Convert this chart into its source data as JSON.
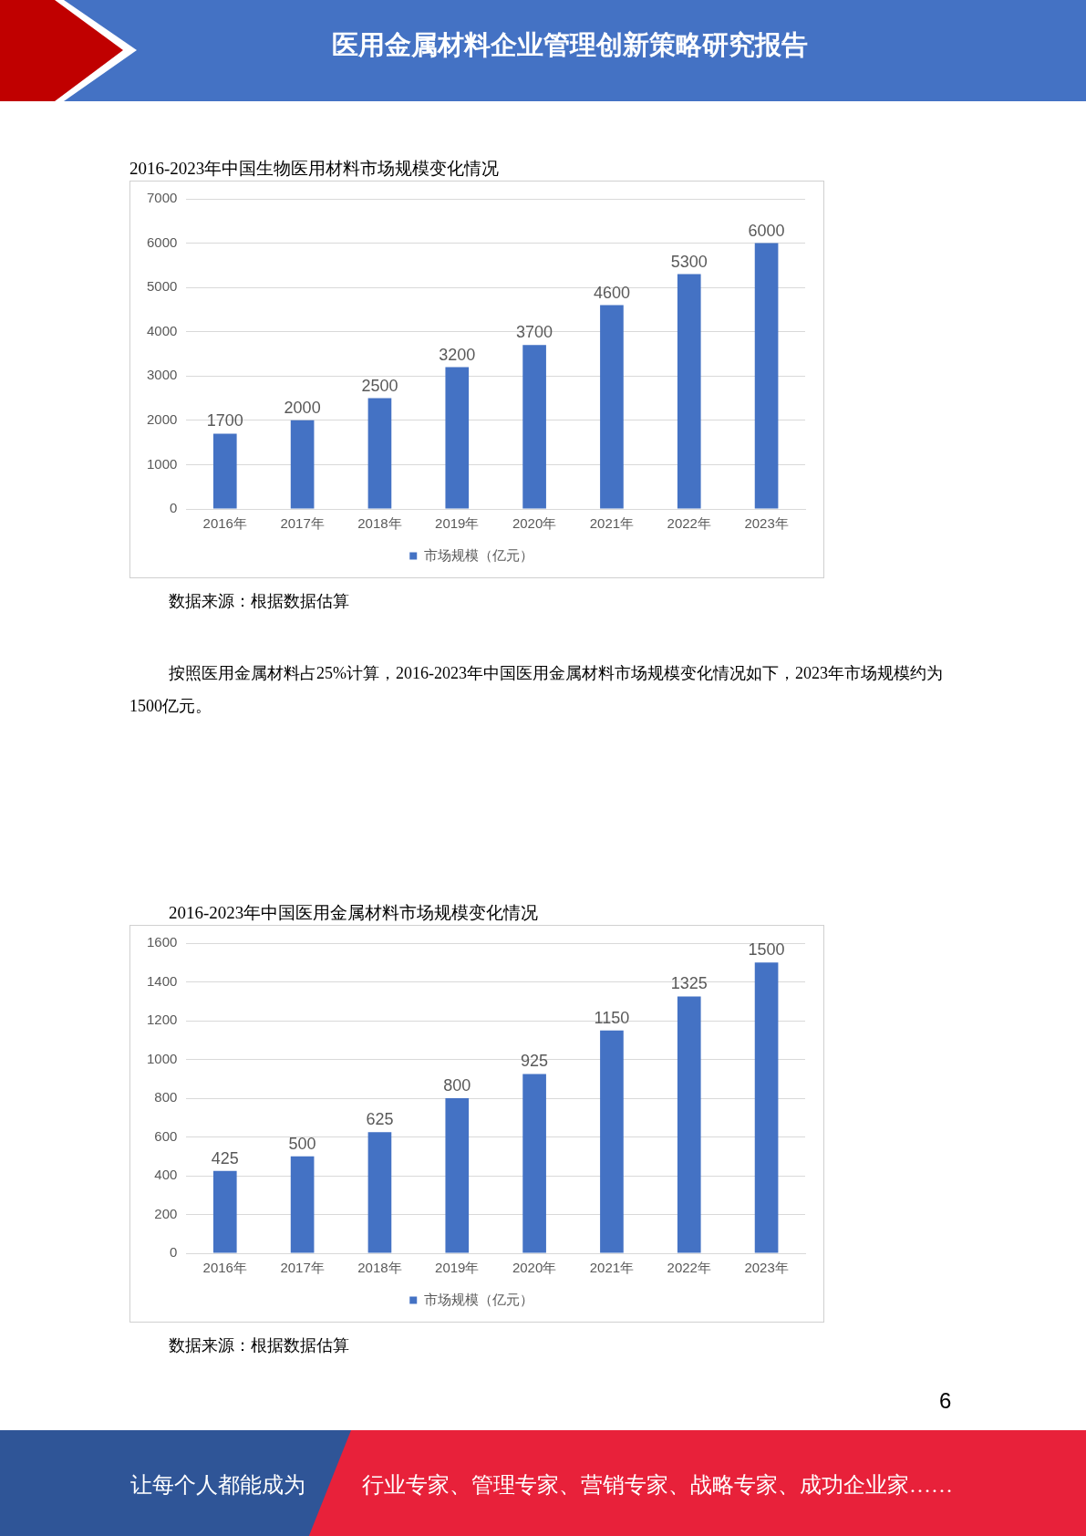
{
  "chart_data": [
    {
      "type": "bar",
      "title": "2016-2023年中国生物医用材料市场规模变化情况",
      "categories": [
        "2016年",
        "2017年",
        "2018年",
        "2019年",
        "2020年",
        "2021年",
        "2022年",
        "2023年"
      ],
      "series": [
        {
          "name": "市场规模（亿元）",
          "color": "#4472c4",
          "values": [
            1700,
            2000,
            2500,
            3200,
            3700,
            4600,
            5300,
            6000
          ]
        }
      ],
      "ylim": [
        0,
        7000
      ],
      "yticks": [
        0,
        1000,
        2000,
        3000,
        4000,
        5000,
        6000,
        7000
      ],
      "grid": "y",
      "legend": "bottom",
      "data_labels": true,
      "annotations": [
        "医用金属材料企业管理创新策略研究报告",
        "数据来源：根据数据估算",
        "按照医用金属材料占25%计算，2016-2023年中国医用金属材料市场规模变化情况如下，2023年市场规模约为1500亿元。"
      ]
    },
    {
      "type": "bar",
      "title": "2016-2023年中国医用金属材料市场规模变化情况",
      "categories": [
        "2016年",
        "2017年",
        "2018年",
        "2019年",
        "2020年",
        "2021年",
        "2022年",
        "2023年"
      ],
      "series": [
        {
          "name": "市场规模（亿元）",
          "color": "#4472c4",
          "values": [
            425,
            500,
            625,
            800,
            925,
            1150,
            1325,
            1500
          ]
        }
      ],
      "ylim": [
        0,
        1600
      ],
      "yticks": [
        0,
        200,
        400,
        600,
        800,
        1000,
        1200,
        1400,
        1600
      ],
      "grid": "y",
      "legend": "bottom",
      "data_labels": true,
      "annotations": [
        "数据来源：根据数据估算",
        "6",
        "让每个人都能成为",
        "行业专家、管理专家、营销专家、战略专家、成功企业家……"
      ]
    }
  ]
}
